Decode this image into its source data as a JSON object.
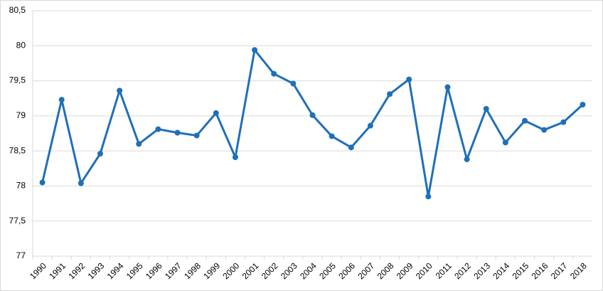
{
  "chart_data": {
    "type": "line",
    "categories": [
      "1990",
      "1991",
      "1992",
      "1993",
      "1994",
      "1995",
      "1996",
      "1997",
      "1998",
      "1999",
      "2000",
      "2001",
      "2002",
      "2003",
      "2004",
      "2005",
      "2006",
      "2007",
      "2008",
      "2009",
      "2010",
      "2011",
      "2012",
      "2013",
      "2014",
      "2015",
      "2016",
      "2017",
      "2018"
    ],
    "values": [
      78.05,
      79.23,
      78.04,
      78.46,
      79.36,
      78.6,
      78.81,
      78.76,
      78.72,
      79.04,
      78.41,
      79.94,
      79.6,
      79.46,
      79.01,
      78.71,
      78.55,
      78.86,
      79.31,
      79.52,
      77.85,
      79.41,
      78.38,
      79.1,
      78.62,
      78.93,
      78.8,
      78.91,
      79.16
    ],
    "color": "#1f6fb8",
    "ylim": [
      77,
      80.5
    ],
    "yticks": [
      77,
      {
        "value": 77.5,
        "label": "77,5"
      },
      78,
      {
        "value": 78.5,
        "label": "78,5"
      },
      79,
      {
        "value": 79.5,
        "label": "79,5"
      },
      80,
      {
        "value": 80.5,
        "label": "80,5"
      }
    ],
    "grid": true
  }
}
